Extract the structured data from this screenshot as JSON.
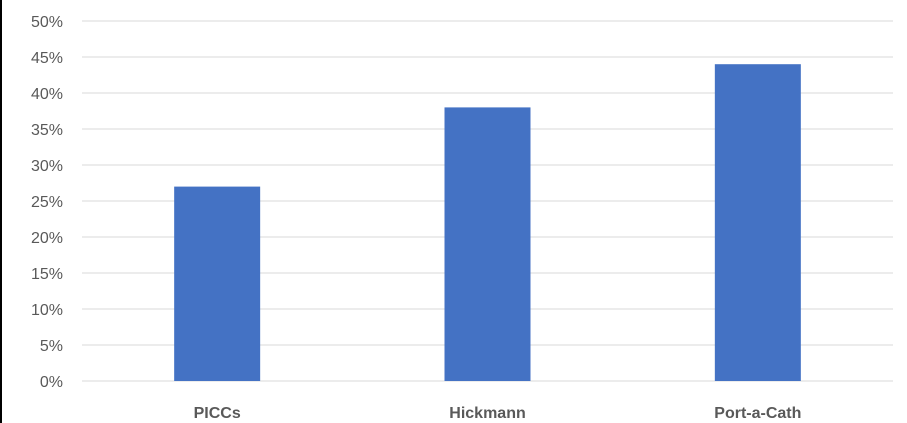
{
  "chart_data": {
    "type": "bar",
    "categories": [
      "PICCs",
      "Hickmann",
      "Port-a-Cath"
    ],
    "values": [
      27,
      38,
      44
    ],
    "title": "",
    "xlabel": "",
    "ylabel": "",
    "ylim": [
      0,
      50
    ],
    "ytick_step": 5,
    "ytick_labels": [
      "0%",
      "5%",
      "10%",
      "15%",
      "20%",
      "25%",
      "30%",
      "35%",
      "40%",
      "45%",
      "50%"
    ],
    "grid": true,
    "legend": "none",
    "bar_color": "#4472C4",
    "grid_color": "#D9D9D9",
    "text_color": "#595959"
  }
}
